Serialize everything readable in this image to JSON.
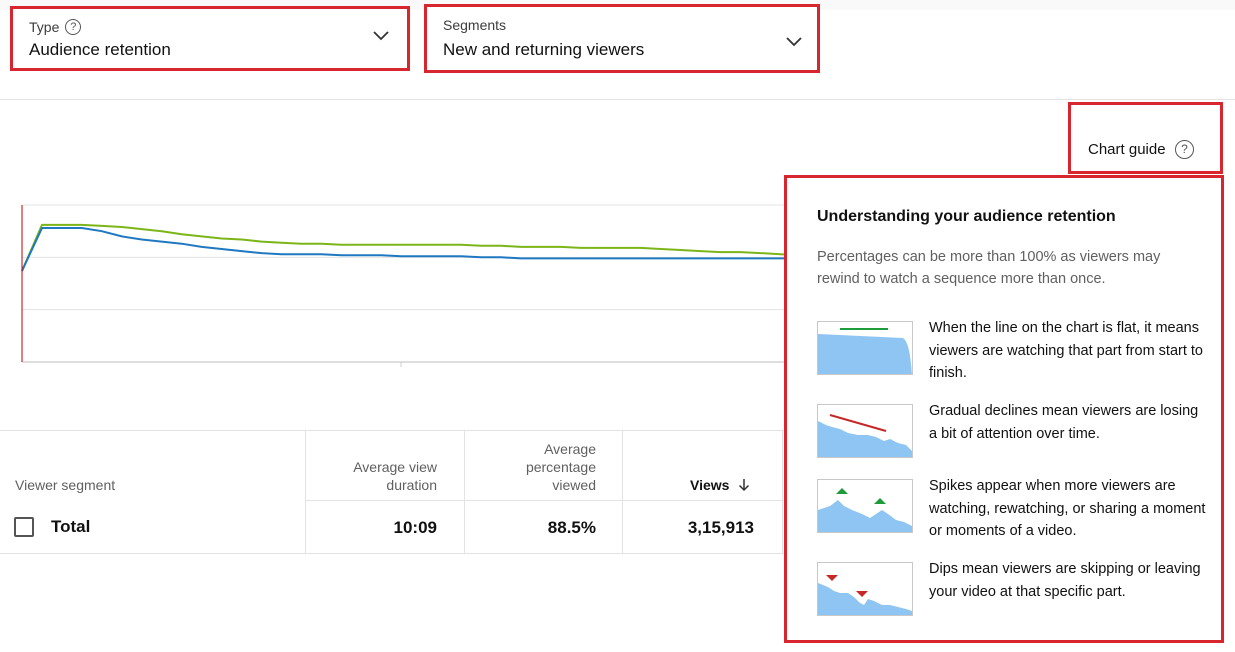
{
  "filters": {
    "type": {
      "label": "Type",
      "value": "Audience retention"
    },
    "segments": {
      "label": "Segments",
      "value": "New and returning viewers"
    }
  },
  "chart_guide": {
    "button_label": "Chart guide",
    "title": "Understanding your audience retention",
    "description": "Percentages can be more than 100% as viewers may rewind to watch a sequence more than once.",
    "items": [
      {
        "icon": "flat-line-thumbnail",
        "text": "When the line on the chart is flat, it means viewers are watching that part from start to finish."
      },
      {
        "icon": "gradual-decline-thumbnail",
        "text": "Gradual declines mean viewers are losing a bit of attention over time."
      },
      {
        "icon": "spikes-thumbnail",
        "text": "Spikes appear when more viewers are watching, rewatching, or sharing a moment or moments of a video."
      },
      {
        "icon": "dips-thumbnail",
        "text": "Dips mean viewers are skipping or leaving your video at that specific part."
      }
    ]
  },
  "table": {
    "segment_header": "Viewer segment",
    "avg_view_duration_header": "Average view duration",
    "avg_pct_viewed_header": "Average percentage viewed",
    "views_header": "Views",
    "views_sort_icon": "arrow-down-icon",
    "total_row": {
      "label": "Total",
      "avg_view_duration": "10:09",
      "avg_pct_viewed": "88.5%",
      "views": "3,15,913"
    }
  },
  "colors": {
    "highlight_border": "#d7262d",
    "returning_series": "#7cb518",
    "new_series": "#1f78c1",
    "playhead": "#c00000"
  },
  "chart_data": {
    "type": "line",
    "title": "",
    "xlabel": "",
    "ylabel": "",
    "x": [
      0,
      2,
      4,
      6,
      8,
      10,
      12,
      14,
      16,
      18,
      20,
      22,
      24,
      26,
      28,
      30,
      32,
      34,
      36,
      38,
      40,
      42,
      44,
      46,
      48,
      50,
      52,
      54,
      56,
      58,
      60,
      62,
      64,
      66,
      68,
      70,
      72,
      74,
      76,
      78,
      80,
      82,
      84,
      86,
      88,
      90,
      92,
      94,
      96,
      98,
      100
    ],
    "ylim": [
      0,
      150
    ],
    "grid": true,
    "series": [
      {
        "values": [
          87,
          131,
          131,
          131,
          130,
          129,
          127,
          125,
          122,
          120,
          118,
          117,
          115,
          114,
          113,
          113,
          112,
          112,
          112,
          112,
          112,
          112,
          112,
          111,
          111,
          110,
          110,
          110,
          109,
          109,
          109,
          109,
          108,
          107,
          106,
          105,
          105,
          104,
          103,
          102,
          100,
          99,
          98,
          97,
          96,
          95,
          94,
          93,
          92,
          91,
          90
        ]
      },
      {
        "values": [
          87,
          128,
          128,
          128,
          125,
          120,
          117,
          115,
          113,
          110,
          108,
          106,
          104,
          103,
          103,
          103,
          102,
          102,
          102,
          101,
          101,
          101,
          101,
          100,
          100,
          99,
          99,
          99,
          99,
          99,
          99,
          99,
          99,
          99,
          99,
          99,
          99,
          99,
          99,
          99,
          99,
          99,
          98,
          97,
          96,
          95,
          93,
          91,
          90,
          89,
          89
        ]
      }
    ]
  }
}
